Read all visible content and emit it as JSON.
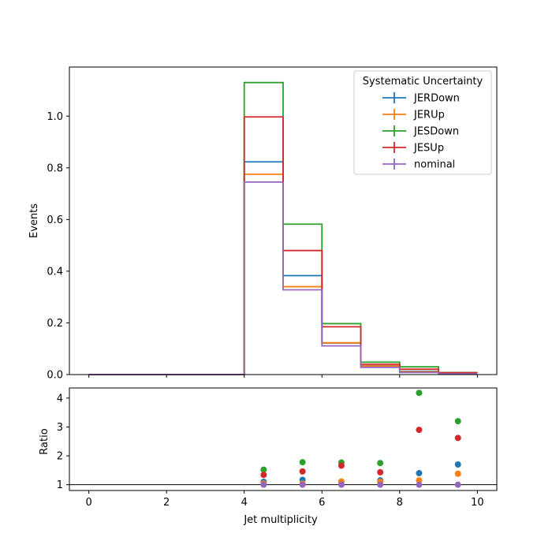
{
  "chart_data": [
    {
      "type": "line",
      "style": "step-histogram",
      "xlabel": "",
      "ylabel": "Events",
      "xlim": [
        -0.5,
        10.5
      ],
      "ylim": [
        0,
        1.19
      ],
      "bin_edges": [
        0,
        1,
        2,
        3,
        4,
        5,
        6,
        7,
        8,
        9,
        10
      ],
      "x_ticks": [
        "0",
        "2",
        "4",
        "6",
        "8",
        "10"
      ],
      "y_ticks": [
        "0.0",
        "0.2",
        "0.4",
        "0.6",
        "0.8",
        "1.0"
      ],
      "series": [
        {
          "name": "JERDown",
          "color": "#1f77b4",
          "values": [
            0,
            0,
            0,
            0,
            0.823,
            0.383,
            0.122,
            0.034,
            0.013,
            0.006
          ]
        },
        {
          "name": "JERUp",
          "color": "#ff7f0e",
          "values": [
            0,
            0,
            0,
            0,
            0.775,
            0.34,
            0.123,
            0.033,
            0.011,
            0.005
          ]
        },
        {
          "name": "JESDown",
          "color": "#2ca02c",
          "values": [
            0,
            0,
            0,
            0,
            1.13,
            0.582,
            0.197,
            0.048,
            0.03,
            0.008
          ]
        },
        {
          "name": "JESUp",
          "color": "#d62728",
          "values": [
            0,
            0,
            0,
            0,
            0.997,
            0.48,
            0.185,
            0.04,
            0.021,
            0.007
          ]
        },
        {
          "name": "nominal",
          "color": "#9467bd",
          "values": [
            0,
            0,
            0,
            0,
            0.745,
            0.328,
            0.111,
            0.028,
            0.008,
            0.003
          ]
        }
      ],
      "legend": {
        "title": "Systematic Uncertainty",
        "position": "top-right"
      },
      "grid": false
    },
    {
      "type": "scatter",
      "xlabel": "Jet multiplicity",
      "ylabel": "Ratio",
      "xlim": [
        -0.5,
        10.5
      ],
      "ylim": [
        0.8,
        4.35
      ],
      "x_ticks": [
        "0",
        "2",
        "4",
        "6",
        "8",
        "10"
      ],
      "y_ticks": [
        "1",
        "2",
        "3",
        "4"
      ],
      "reference_line": 1,
      "x": [
        4.5,
        5.5,
        6.5,
        7.5,
        8.5,
        9.5
      ],
      "series": [
        {
          "name": "JERDown",
          "color": "#1f77b4",
          "values": [
            1.1,
            1.17,
            1.1,
            1.15,
            1.4,
            1.7
          ]
        },
        {
          "name": "JERUp",
          "color": "#ff7f0e",
          "values": [
            1.04,
            1.04,
            1.11,
            1.1,
            1.15,
            1.38
          ]
        },
        {
          "name": "JESDown",
          "color": "#2ca02c",
          "values": [
            1.52,
            1.78,
            1.77,
            1.75,
            4.18,
            3.2
          ]
        },
        {
          "name": "JESUp",
          "color": "#d62728",
          "values": [
            1.34,
            1.46,
            1.66,
            1.43,
            2.9,
            2.62
          ]
        },
        {
          "name": "nominal",
          "color": "#9467bd",
          "values": [
            1.0,
            1.0,
            1.0,
            1.0,
            1.0,
            1.0
          ]
        }
      ],
      "grid": false
    }
  ]
}
